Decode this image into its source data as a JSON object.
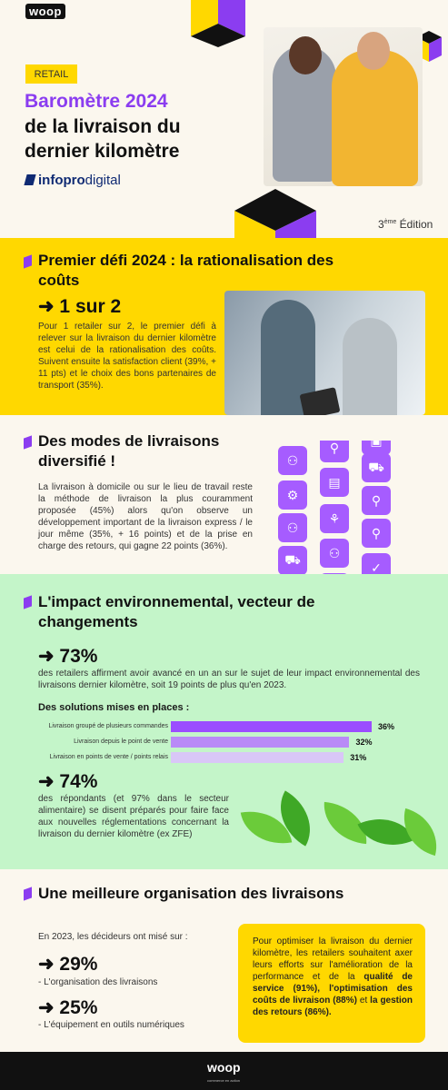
{
  "header": {
    "logo": "woop",
    "tag": "RETAIL",
    "title_line1": "Baromètre 2024",
    "title_line2": "de la livraison du dernier kilomètre",
    "publisher_bold": "infopro",
    "publisher_rest": "digital",
    "edition_num": "3",
    "edition_sup": "ème",
    "edition_word": " Édition"
  },
  "section1": {
    "heading": "Premier défi 2024 : la rationalisation des coûts",
    "stat": "➜ 1 sur 2",
    "body": "Pour 1 retailer sur 2, le premier défi à relever sur la livraison du dernier kilomètre est celui de la rationalisation des coûts. Suivent ensuite la satisfaction client (39%, + 11 pts) et le choix des bons partenaires de transport (35%)."
  },
  "section2": {
    "heading": "Des modes de livraisons diversifié !",
    "body": "La livraison à domicile ou sur le lieu de travail reste la méthode de livraison la plus couramment proposée (45%) alors qu'on observe un développement important de la livraison express / le jour même  (35%, + 16 points) et de la prise en charge des retours, qui gagne 22 points (36%)."
  },
  "section3": {
    "heading": "L'impact environnemental, vecteur de changements",
    "stat1": "➜ 73%",
    "stat1_text": "des retailers affirment avoir avancé en un an sur le sujet de leur impact environnemental des livraisons dernier kilomètre, soit 19 points de plus qu'en 2023.",
    "chart_title": "Des solutions mises en places :",
    "stat2": "➜ 74%",
    "stat2_text": "des répondants (et 97% dans le secteur alimentaire) se disent préparés pour faire face aux nouvelles réglementations concernant la livraison du dernier kilomètre (ex ZFE)"
  },
  "chart_data": {
    "type": "bar",
    "title": "Des solutions mises en places :",
    "categories": [
      "Livraison groupé de plusieurs commandes",
      "Livraison depuis le point de vente",
      "Livraison en points de vente / points relais"
    ],
    "values": [
      36,
      32,
      31
    ],
    "value_labels": [
      "36%",
      "32%",
      "31%"
    ],
    "colors": [
      "#9b4dff",
      "#b98af7",
      "#d9c7f7"
    ],
    "xlim": [
      0,
      36
    ]
  },
  "section4": {
    "heading": "Une meilleure organisation des livraisons",
    "intro": "En 2023, les décideurs ont misé sur  :",
    "stat1": "➜ 29%",
    "stat1_text": "- L'organisation des livraisons",
    "stat2": "➜ 25%",
    "stat2_text": "- L'équipement en outils numériques",
    "box_a": "Pour optimiser la livraison du dernier kilomètre, les retailers souhaitent axer leurs efforts sur l'amélioration de la performance et de la ",
    "box_b": "qualité de service (91%), l'optimisation des coûts de livraison (88%)",
    "box_c": " et ",
    "box_d": "la gestion des retours (86%)."
  },
  "footer": {
    "logo": "woop",
    "tagline": "commerce en action"
  },
  "colors": {
    "purple": "#8b3df0",
    "yellow": "#ffd800",
    "green": "#c4f5c9",
    "black": "#111111"
  }
}
